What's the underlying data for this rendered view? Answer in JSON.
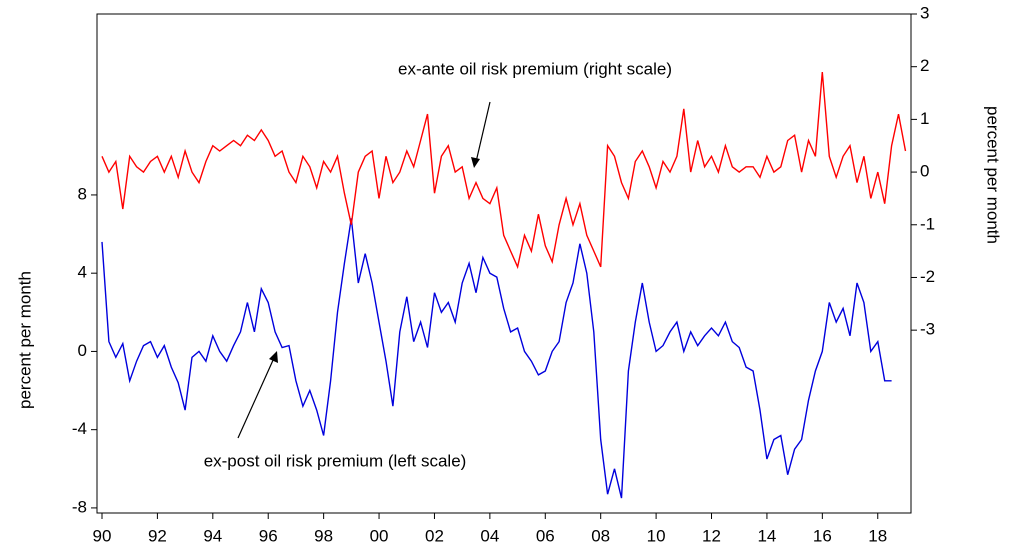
{
  "chart_data": {
    "type": "line",
    "annotations": [
      "ex-ante oil risk premium (right scale)",
      "ex-post oil risk premium (left scale)"
    ],
    "ylabel": "percent per month",
    "y2label": "percent per month",
    "x": [
      1990,
      1990.25,
      1990.5,
      1990.75,
      1991,
      1991.25,
      1991.5,
      1991.75,
      1992,
      1992.25,
      1992.5,
      1992.75,
      1993,
      1993.25,
      1993.5,
      1993.75,
      1994,
      1994.25,
      1994.5,
      1994.75,
      1995,
      1995.25,
      1995.5,
      1995.75,
      1996,
      1996.25,
      1996.5,
      1996.75,
      1997,
      1997.25,
      1997.5,
      1997.75,
      1998,
      1998.25,
      1998.5,
      1998.75,
      1999,
      1999.25,
      1999.5,
      1999.75,
      2000,
      2000.25,
      2000.5,
      2000.75,
      2001,
      2001.25,
      2001.5,
      2001.75,
      2002,
      2002.25,
      2002.5,
      2002.75,
      2003,
      2003.25,
      2003.5,
      2003.75,
      2004,
      2004.25,
      2004.5,
      2004.75,
      2005,
      2005.25,
      2005.5,
      2005.75,
      2006,
      2006.25,
      2006.5,
      2006.75,
      2007,
      2007.25,
      2007.5,
      2007.75,
      2008,
      2008.25,
      2008.5,
      2008.75,
      2009,
      2009.25,
      2009.5,
      2009.75,
      2010,
      2010.25,
      2010.5,
      2010.75,
      2011,
      2011.25,
      2011.5,
      2011.75,
      2012,
      2012.25,
      2012.5,
      2012.75,
      2013,
      2013.25,
      2013.5,
      2013.75,
      2014,
      2014.25,
      2014.5,
      2014.75,
      2015,
      2015.25,
      2015.5,
      2015.75,
      2016,
      2016.25,
      2016.5,
      2016.75,
      2017,
      2017.25,
      2017.5,
      2017.75,
      2018,
      2018.25,
      2018.5,
      2018.75,
      2019
    ],
    "series": [
      {
        "name": "ex-post oil risk premium",
        "color": "#0000dd",
        "axis": "y",
        "values": [
          5.6,
          0.5,
          -0.3,
          0.4,
          -1.5,
          -0.5,
          0.3,
          0.5,
          -0.3,
          0.3,
          -0.8,
          -1.6,
          -3.0,
          -0.3,
          0.0,
          -0.5,
          0.8,
          0.0,
          -0.5,
          0.3,
          1.0,
          2.5,
          1.0,
          3.2,
          2.5,
          1.0,
          0.2,
          0.3,
          -1.5,
          -2.8,
          -2.0,
          -3.0,
          -4.3,
          -1.5,
          2.0,
          4.5,
          6.8,
          3.5,
          5.0,
          3.5,
          1.5,
          -0.5,
          -2.8,
          1.0,
          2.8,
          0.5,
          1.5,
          0.2,
          3.0,
          2.0,
          2.5,
          1.5,
          3.5,
          4.5,
          3.0,
          4.8,
          4.0,
          3.8,
          2.2,
          1.0,
          1.2,
          0.0,
          -0.5,
          -1.2,
          -1.0,
          0.0,
          0.5,
          2.5,
          3.5,
          5.5,
          4.0,
          1.0,
          -4.5,
          -7.3,
          -6.0,
          -7.5,
          -1.0,
          1.5,
          3.5,
          1.5,
          0.0,
          0.3,
          1.0,
          1.5,
          0.0,
          1.0,
          0.3,
          0.8,
          1.2,
          0.8,
          1.5,
          0.5,
          0.2,
          -0.8,
          -1.0,
          -3.0,
          -5.5,
          -4.5,
          -4.3,
          -6.3,
          -5.0,
          -4.5,
          -2.5,
          -1.0,
          0.0,
          2.5,
          1.5,
          2.2,
          0.8,
          3.5,
          2.5,
          0.0,
          0.5,
          -1.5,
          -1.5,
          null,
          null
        ]
      },
      {
        "name": "ex-ante oil risk premium",
        "color": "#ff0000",
        "axis": "y2",
        "values": [
          0.3,
          0.0,
          0.2,
          -0.7,
          0.3,
          0.1,
          0.0,
          0.2,
          0.3,
          0.0,
          0.3,
          -0.1,
          0.4,
          0.0,
          -0.2,
          0.2,
          0.5,
          0.4,
          0.5,
          0.6,
          0.5,
          0.7,
          0.6,
          0.8,
          0.6,
          0.3,
          0.4,
          0.0,
          -0.2,
          0.3,
          0.1,
          -0.3,
          0.2,
          0.0,
          0.3,
          -0.4,
          -1.0,
          0.0,
          0.3,
          0.4,
          -0.5,
          0.3,
          -0.2,
          0.0,
          0.4,
          0.1,
          0.6,
          1.1,
          -0.4,
          0.3,
          0.5,
          0.0,
          0.1,
          -0.5,
          -0.2,
          -0.5,
          -0.6,
          -0.3,
          -1.2,
          -1.5,
          -1.8,
          -1.2,
          -1.5,
          -0.8,
          -1.4,
          -1.7,
          -1.0,
          -0.5,
          -1.0,
          -0.6,
          -1.2,
          -1.5,
          -1.8,
          0.5,
          0.3,
          -0.2,
          -0.5,
          0.2,
          0.4,
          0.1,
          -0.3,
          0.2,
          0.0,
          0.3,
          1.2,
          0.0,
          0.6,
          0.1,
          0.3,
          0.0,
          0.5,
          0.1,
          0.0,
          0.1,
          0.1,
          -0.1,
          0.3,
          0.0,
          0.1,
          0.6,
          0.7,
          0.0,
          0.6,
          0.3,
          1.9,
          0.3,
          -0.1,
          0.3,
          0.5,
          -0.2,
          0.3,
          -0.5,
          0.0,
          -0.6,
          0.5,
          1.1,
          0.4
        ]
      }
    ],
    "xlim": [
      1989.82,
      2019.2
    ],
    "xticks": [
      {
        "value": 1990,
        "label": "90"
      },
      {
        "value": 1992,
        "label": "92"
      },
      {
        "value": 1994,
        "label": "94"
      },
      {
        "value": 1996,
        "label": "96"
      },
      {
        "value": 1998,
        "label": "98"
      },
      {
        "value": 2000,
        "label": "00"
      },
      {
        "value": 2002,
        "label": "02"
      },
      {
        "value": 2004,
        "label": "04"
      },
      {
        "value": 2006,
        "label": "06"
      },
      {
        "value": 2008,
        "label": "08"
      },
      {
        "value": 2010,
        "label": "10"
      },
      {
        "value": 2012,
        "label": "12"
      },
      {
        "value": 2014,
        "label": "14"
      },
      {
        "value": 2016,
        "label": "16"
      },
      {
        "value": 2018,
        "label": "18"
      }
    ],
    "ylim": [
      -8.26,
      17.25
    ],
    "yticks": [
      -8,
      -4,
      0,
      4,
      8
    ],
    "y2lim": [
      -6.47,
      3
    ],
    "y2ticks": [
      -3,
      -2,
      -1,
      0,
      1,
      2,
      3
    ]
  }
}
